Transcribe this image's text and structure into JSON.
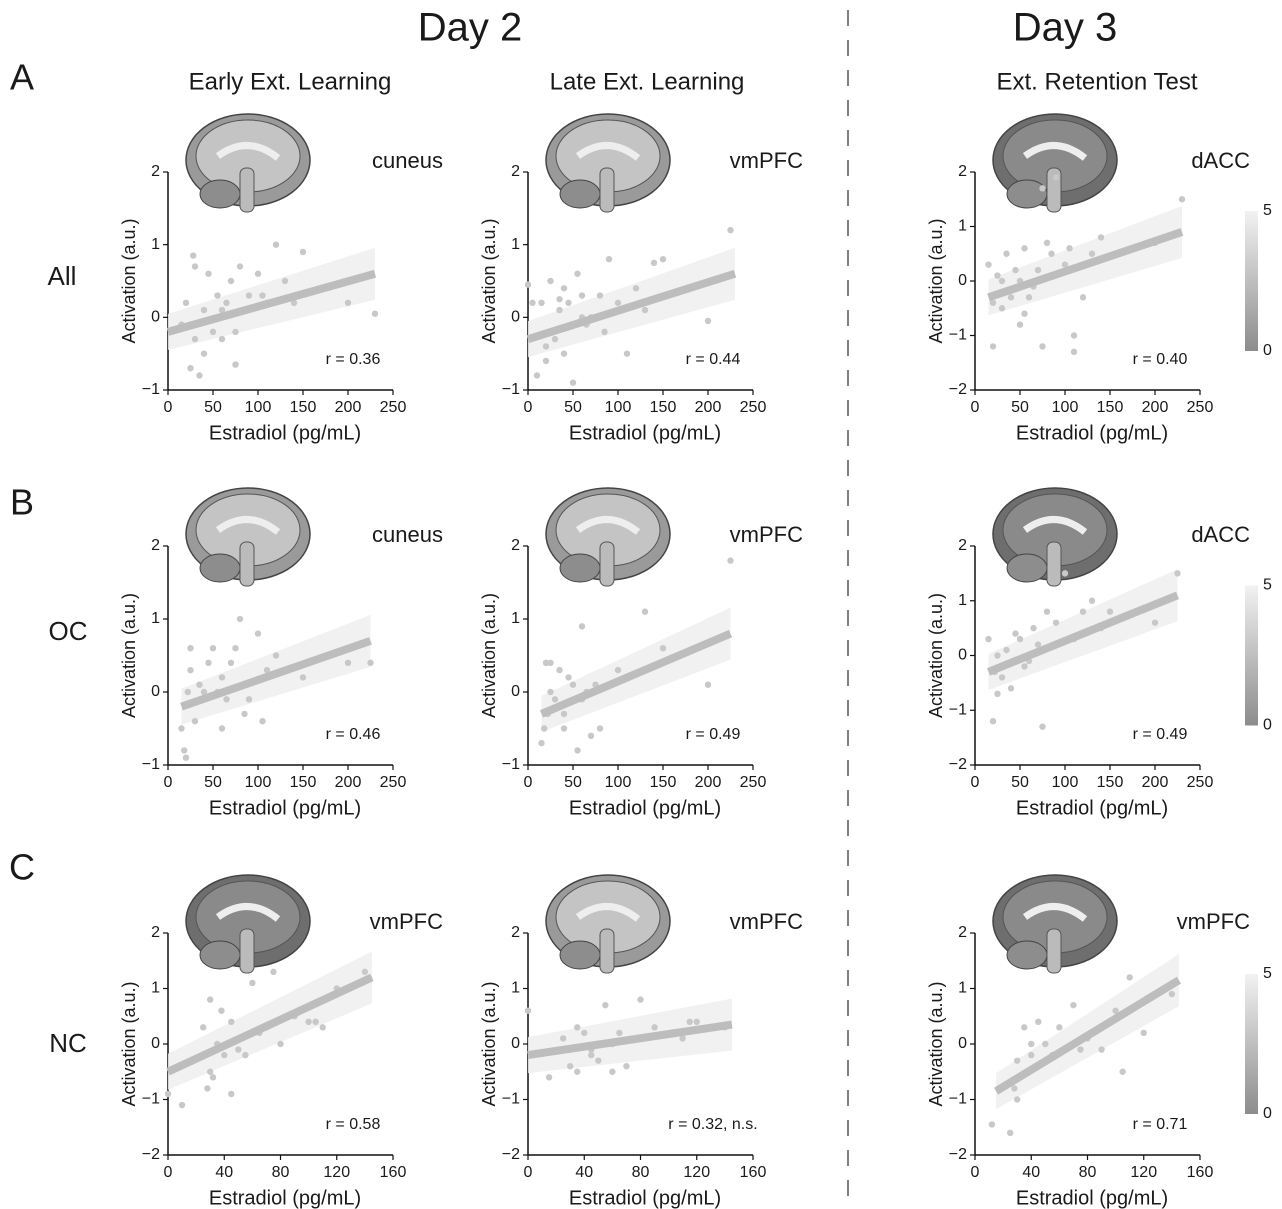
{
  "figure": {
    "days": [
      "Day 2",
      "Day 3"
    ],
    "panels": [
      "A",
      "B",
      "C"
    ],
    "groups": [
      "All",
      "OC",
      "NC"
    ],
    "columns": [
      "Early Ext. Learning",
      "Late Ext. Learning",
      "Ext. Retention Test"
    ]
  },
  "chart_data": [
    {
      "type": "scatter",
      "region": "cuneus",
      "annotation": "r = 0.36",
      "xlabel": "Estradiol (pg/mL)",
      "ylabel": "Activation (a.u.)",
      "color": "#c8c8c8",
      "fit_color": "#bdbdbd",
      "xlim": [
        0,
        250
      ],
      "xticks": [
        0,
        50,
        100,
        150,
        200,
        250
      ],
      "ylim": [
        -1,
        2
      ],
      "yticks": [
        {
          "value": -1,
          "label": "−1"
        },
        0,
        1,
        2
      ],
      "x": [
        20,
        25,
        28,
        30,
        35,
        40,
        45,
        50,
        55,
        60,
        65,
        70,
        75,
        80,
        85,
        90,
        100,
        105,
        110,
        120,
        130,
        140,
        150,
        200,
        230,
        15,
        30,
        40,
        60,
        75
      ],
      "y": [
        0.2,
        -0.7,
        0.85,
        -0.3,
        -0.8,
        0.1,
        0.6,
        -0.2,
        0.3,
        -0.3,
        0.2,
        0.5,
        -0.2,
        0.7,
        0.1,
        0.3,
        0.6,
        0.3,
        0.2,
        1.0,
        0.5,
        0.2,
        0.9,
        0.2,
        0.05,
        -0.1,
        0.7,
        -0.5,
        0.1,
        -0.65
      ],
      "fit": {
        "x": [
          0,
          230
        ],
        "y": [
          -0.2,
          0.6
        ]
      }
    },
    {
      "type": "scatter",
      "region": "vmPFC",
      "annotation": "r = 0.44",
      "xlabel": "Estradiol (pg/mL)",
      "ylabel": "Activation (a.u.)",
      "color": "#c8c8c8",
      "fit_color": "#bdbdbd",
      "xlim": [
        0,
        250
      ],
      "xticks": [
        0,
        50,
        100,
        150,
        200,
        250
      ],
      "ylim": [
        -1,
        2
      ],
      "yticks": [
        {
          "value": -1,
          "label": "−1"
        },
        0,
        1,
        2
      ],
      "x": [
        0,
        10,
        15,
        20,
        25,
        30,
        35,
        40,
        45,
        50,
        55,
        60,
        65,
        70,
        80,
        90,
        100,
        110,
        120,
        130,
        140,
        150,
        200,
        225,
        20,
        40,
        60,
        85,
        5,
        35
      ],
      "y": [
        0.45,
        -0.8,
        0.2,
        -0.6,
        0.5,
        -0.3,
        0.1,
        0.4,
        0.2,
        -0.9,
        0.6,
        0.3,
        -0.1,
        0.0,
        0.3,
        0.8,
        0.2,
        -0.5,
        0.4,
        0.1,
        0.75,
        0.8,
        -0.05,
        1.2,
        -0.4,
        -0.5,
        0.0,
        -0.2,
        0.2,
        0.25
      ],
      "fit": {
        "x": [
          0,
          230
        ],
        "y": [
          -0.3,
          0.6
        ]
      }
    },
    {
      "type": "scatter",
      "region": "dACC",
      "annotation": "r = 0.40",
      "xlabel": "Estradiol (pg/mL)",
      "ylabel": "Activation (a.u.)",
      "color": "#c8c8c8",
      "fit_color": "#bdbdbd",
      "xlim": [
        0,
        250
      ],
      "xticks": [
        0,
        50,
        100,
        150,
        200,
        250
      ],
      "ylim": [
        -2,
        2
      ],
      "yticks": [
        {
          "value": -2,
          "label": "−2"
        },
        {
          "value": -1,
          "label": "−1"
        },
        0,
        1,
        2
      ],
      "x": [
        15,
        20,
        25,
        30,
        35,
        40,
        45,
        50,
        55,
        60,
        65,
        75,
        80,
        85,
        90,
        100,
        110,
        120,
        130,
        140,
        200,
        230,
        20,
        30,
        50,
        70,
        75,
        110,
        105,
        55
      ],
      "y": [
        0.3,
        -1.2,
        0.1,
        -0.5,
        0.5,
        -0.3,
        0.2,
        -0.8,
        0.6,
        -0.3,
        -0.1,
        1.7,
        0.7,
        0.5,
        1.9,
        0.3,
        -1.3,
        -0.3,
        0.5,
        0.8,
        0.7,
        1.5,
        -0.4,
        0.0,
        0.0,
        0.2,
        -1.2,
        -1.0,
        0.6,
        -0.6
      ],
      "fit": {
        "x": [
          15,
          230
        ],
        "y": [
          -0.3,
          0.9
        ]
      },
      "colorbar": {
        "lim": [
          0,
          5
        ],
        "ticks": [
          0,
          5
        ]
      }
    },
    {
      "type": "scatter",
      "region": "cuneus",
      "annotation": "r = 0.46",
      "xlabel": "Estradiol (pg/mL)",
      "ylabel": "Activation (a.u.)",
      "color": "#c8c8c8",
      "fit_color": "#bdbdbd",
      "xlim": [
        0,
        250
      ],
      "xticks": [
        0,
        50,
        100,
        150,
        200,
        250
      ],
      "ylim": [
        -1,
        2
      ],
      "yticks": [
        {
          "value": -1,
          "label": "−1"
        },
        0,
        1,
        2
      ],
      "x": [
        15,
        18,
        20,
        22,
        25,
        30,
        35,
        40,
        45,
        50,
        55,
        60,
        65,
        70,
        75,
        80,
        90,
        100,
        105,
        110,
        120,
        150,
        200,
        225,
        25,
        40,
        60,
        85
      ],
      "y": [
        -0.5,
        -0.8,
        -0.9,
        0.0,
        0.6,
        -0.4,
        0.1,
        -0.1,
        0.4,
        0.6,
        0.0,
        0.2,
        -0.1,
        0.4,
        0.6,
        1.0,
        -0.1,
        0.8,
        -0.4,
        0.3,
        0.5,
        0.2,
        0.4,
        0.4,
        0.3,
        0.0,
        -0.5,
        -0.3
      ],
      "fit": {
        "x": [
          15,
          225
        ],
        "y": [
          -0.2,
          0.7
        ]
      }
    },
    {
      "type": "scatter",
      "region": "vmPFC",
      "annotation": "r = 0.49",
      "xlabel": "Estradiol (pg/mL)",
      "ylabel": "Activation (a.u.)",
      "color": "#c8c8c8",
      "fit_color": "#bdbdbd",
      "xlim": [
        0,
        250
      ],
      "xticks": [
        0,
        50,
        100,
        150,
        200,
        250
      ],
      "ylim": [
        -1,
        2
      ],
      "yticks": [
        {
          "value": -1,
          "label": "−1"
        },
        0,
        1,
        2
      ],
      "x": [
        15,
        18,
        20,
        22,
        25,
        30,
        35,
        40,
        45,
        50,
        55,
        60,
        65,
        70,
        80,
        100,
        110,
        130,
        150,
        200,
        225,
        25,
        40,
        60,
        75
      ],
      "y": [
        -0.7,
        -0.5,
        0.4,
        -0.3,
        0.4,
        -0.1,
        0.3,
        -0.5,
        0.2,
        0.1,
        -0.8,
        0.9,
        0.0,
        -0.6,
        -0.5,
        0.3,
        0.2,
        1.1,
        0.6,
        0.1,
        1.8,
        0.0,
        -0.3,
        -0.1,
        0.1
      ],
      "fit": {
        "x": [
          15,
          225
        ],
        "y": [
          -0.3,
          0.8
        ]
      }
    },
    {
      "type": "scatter",
      "region": "dACC",
      "annotation": "r = 0.49",
      "xlabel": "Estradiol (pg/mL)",
      "ylabel": "Activation (a.u.)",
      "color": "#c8c8c8",
      "fit_color": "#bdbdbd",
      "xlim": [
        0,
        250
      ],
      "xticks": [
        0,
        50,
        100,
        150,
        200,
        250
      ],
      "ylim": [
        -2,
        2
      ],
      "yticks": [
        {
          "value": -2,
          "label": "−2"
        },
        {
          "value": -1,
          "label": "−1"
        },
        0,
        1,
        2
      ],
      "x": [
        15,
        20,
        22,
        25,
        30,
        35,
        40,
        45,
        50,
        60,
        65,
        70,
        75,
        80,
        90,
        100,
        110,
        120,
        130,
        140,
        150,
        200,
        225,
        25,
        55
      ],
      "y": [
        0.3,
        -1.2,
        -0.3,
        0.0,
        -0.4,
        0.1,
        -0.6,
        0.4,
        0.3,
        -0.1,
        0.5,
        0.2,
        -1.3,
        0.8,
        0.6,
        1.5,
        0.3,
        0.8,
        1.0,
        0.5,
        0.8,
        0.6,
        1.5,
        -0.7,
        -0.2
      ],
      "fit": {
        "x": [
          15,
          225
        ],
        "y": [
          -0.3,
          1.1
        ]
      },
      "colorbar": {
        "lim": [
          0,
          5
        ],
        "ticks": [
          0,
          5
        ]
      }
    },
    {
      "type": "scatter",
      "region": "vmPFC",
      "annotation": "r = 0.58",
      "xlabel": "Estradiol (pg/mL)",
      "ylabel": "Activation (a.u.)",
      "color": "#c8c8c8",
      "fit_color": "#bdbdbd",
      "xlim": [
        0,
        160
      ],
      "xticks": [
        0,
        40,
        80,
        120,
        160
      ],
      "ylim": [
        -2,
        2
      ],
      "yticks": [
        {
          "value": -2,
          "label": "−2"
        },
        {
          "value": -1,
          "label": "−1"
        },
        0,
        1,
        2
      ],
      "x": [
        0,
        10,
        25,
        28,
        30,
        32,
        35,
        38,
        40,
        45,
        50,
        55,
        60,
        65,
        70,
        75,
        80,
        90,
        100,
        105,
        110,
        120,
        140,
        30,
        45
      ],
      "y": [
        -0.9,
        -1.1,
        0.3,
        -0.8,
        0.8,
        -0.6,
        0.0,
        0.6,
        -0.2,
        0.4,
        -0.1,
        -0.2,
        1.1,
        0.2,
        0.3,
        1.3,
        0.0,
        0.5,
        0.4,
        0.4,
        0.3,
        1.0,
        1.3,
        -0.5,
        -0.9
      ],
      "fit": {
        "x": [
          0,
          145
        ],
        "y": [
          -0.5,
          1.2
        ]
      }
    },
    {
      "type": "scatter",
      "region": "vmPFC",
      "annotation": "r = 0.32, n.s.",
      "xlabel": "Estradiol (pg/mL)",
      "ylabel": "Activation (a.u.)",
      "color": "#c8c8c8",
      "fit_color": "#bdbdbd",
      "xlim": [
        0,
        160
      ],
      "xticks": [
        0,
        40,
        80,
        120,
        160
      ],
      "ylim": [
        -2,
        2
      ],
      "yticks": [
        {
          "value": -2,
          "label": "−2"
        },
        {
          "value": -1,
          "label": "−1"
        },
        0,
        1,
        2
      ],
      "x": [
        0,
        15,
        25,
        30,
        35,
        40,
        45,
        50,
        55,
        60,
        65,
        70,
        80,
        90,
        110,
        115,
        120,
        140,
        35,
        45,
        60
      ],
      "y": [
        0.6,
        -0.6,
        0.1,
        -0.4,
        0.3,
        0.2,
        -0.2,
        -0.3,
        0.7,
        0.0,
        0.2,
        -0.4,
        0.8,
        0.3,
        0.1,
        0.4,
        0.4,
        0.3,
        -0.5,
        -0.1,
        -0.5
      ],
      "fit": {
        "x": [
          0,
          145
        ],
        "y": [
          -0.2,
          0.35
        ]
      }
    },
    {
      "type": "scatter",
      "region": "vmPFC",
      "annotation": "r = 0.71",
      "xlabel": "Estradiol (pg/mL)",
      "ylabel": "Activation (a.u.)",
      "color": "#c8c8c8",
      "fit_color": "#bdbdbd",
      "xlim": [
        0,
        160
      ],
      "xticks": [
        0,
        40,
        80,
        120,
        160
      ],
      "ylim": [
        -2,
        2
      ],
      "yticks": [
        {
          "value": -2,
          "label": "−2"
        },
        {
          "value": -1,
          "label": "−1"
        },
        0,
        1,
        2
      ],
      "x": [
        12,
        25,
        28,
        30,
        35,
        38,
        40,
        45,
        50,
        55,
        60,
        70,
        75,
        80,
        90,
        100,
        105,
        110,
        120,
        140,
        30,
        40
      ],
      "y": [
        -1.45,
        -1.6,
        -0.8,
        -0.3,
        0.3,
        -0.5,
        -0.2,
        0.4,
        0.0,
        -0.2,
        0.3,
        0.7,
        -0.1,
        0.1,
        -0.1,
        0.6,
        -0.5,
        1.2,
        0.2,
        0.9,
        -1.0,
        0.0
      ],
      "fit": {
        "x": [
          15,
          145
        ],
        "y": [
          -0.85,
          1.15
        ]
      },
      "colorbar": {
        "lim": [
          0,
          5
        ],
        "ticks": [
          0,
          5
        ]
      }
    }
  ]
}
